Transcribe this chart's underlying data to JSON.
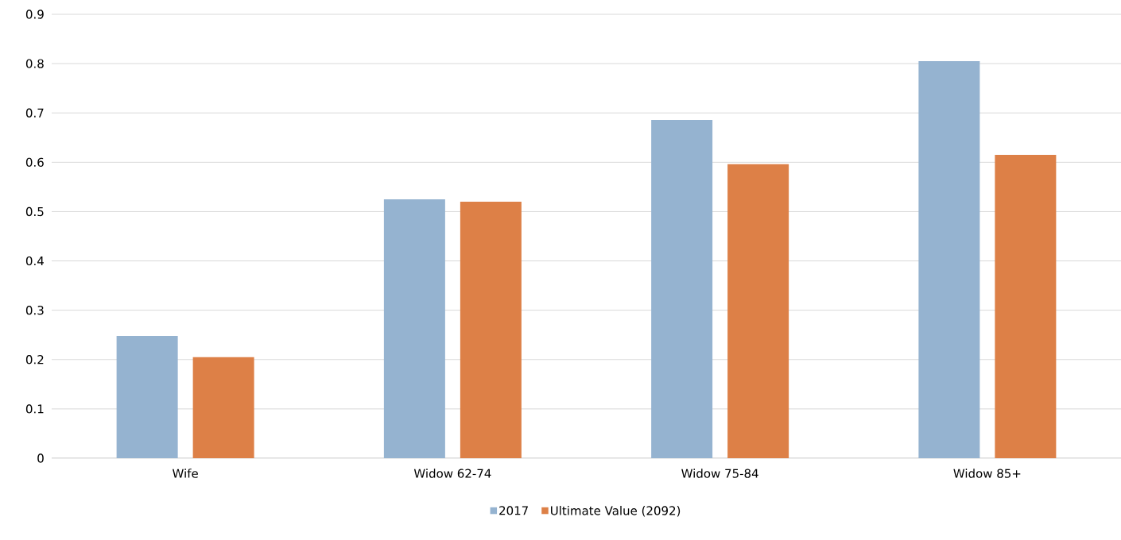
{
  "chart_data": {
    "type": "bar",
    "categories": [
      "Wife",
      "Widow 62-74",
      "Widow 75-84",
      "Widow 85+"
    ],
    "series": [
      {
        "name": "2017",
        "color": "#95b3d0",
        "values": [
          0.248,
          0.525,
          0.686,
          0.805
        ]
      },
      {
        "name": "Ultimate Value (2092)",
        "color": "#dd8047",
        "values": [
          0.205,
          0.52,
          0.596,
          0.615
        ]
      }
    ],
    "ylim": [
      0,
      0.9
    ],
    "yticks": [
      0,
      0.1,
      0.2,
      0.3,
      0.4,
      0.5,
      0.6,
      0.7,
      0.8,
      0.9
    ],
    "grid": "y",
    "legend": "bottom"
  }
}
